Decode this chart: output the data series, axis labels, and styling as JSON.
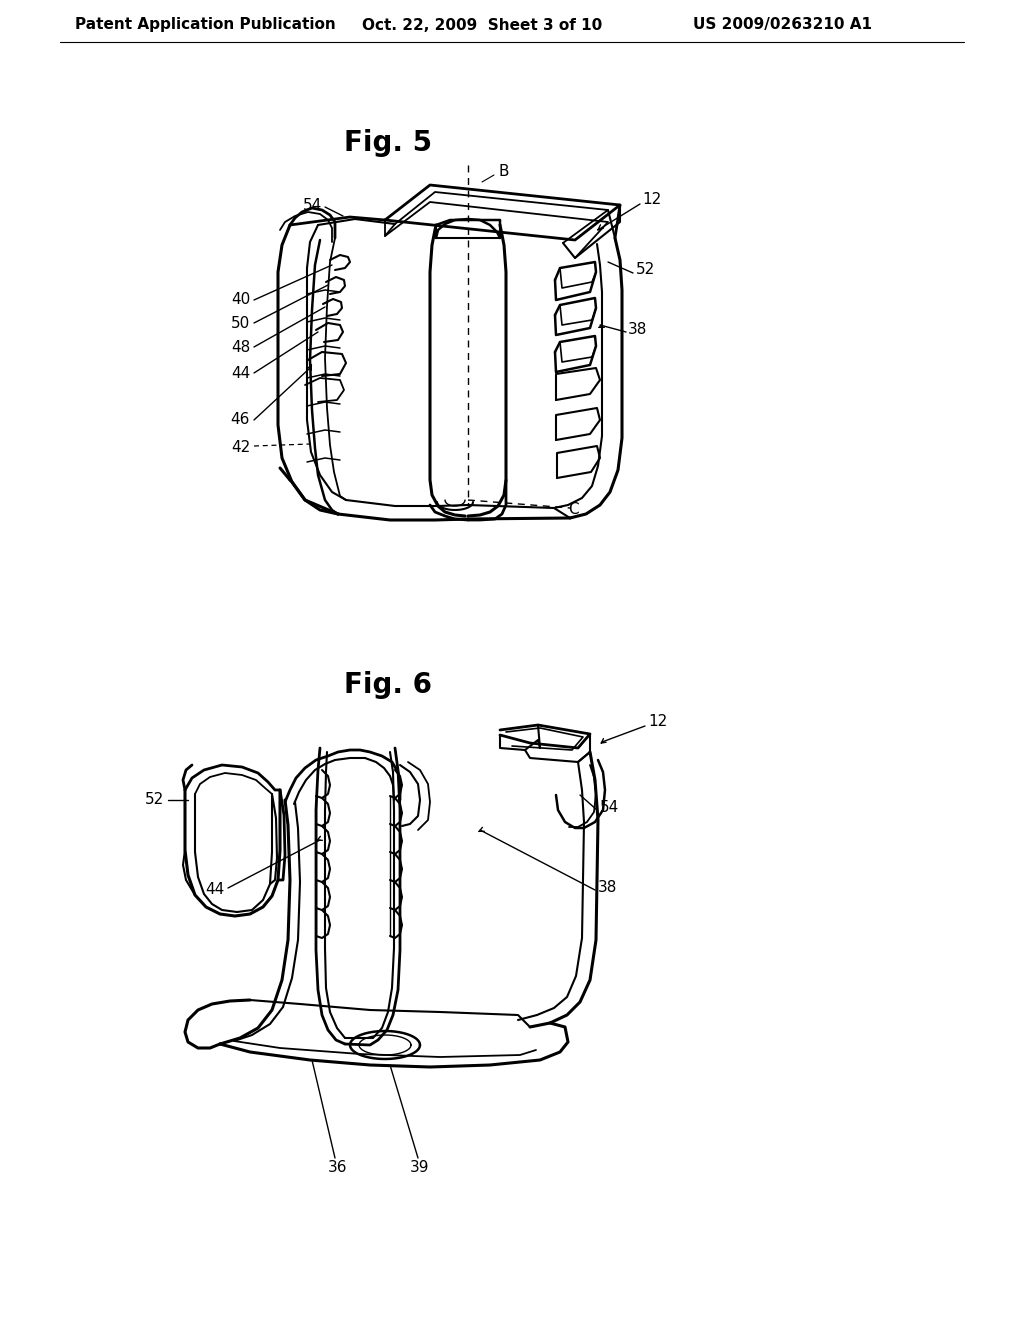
{
  "background_color": "#ffffff",
  "header_text": "Patent Application Publication",
  "header_date": "Oct. 22, 2009  Sheet 3 of 10",
  "header_patent": "US 2009/0263210 A1",
  "fig5_title": "Fig. 5",
  "fig6_title": "Fig. 6"
}
